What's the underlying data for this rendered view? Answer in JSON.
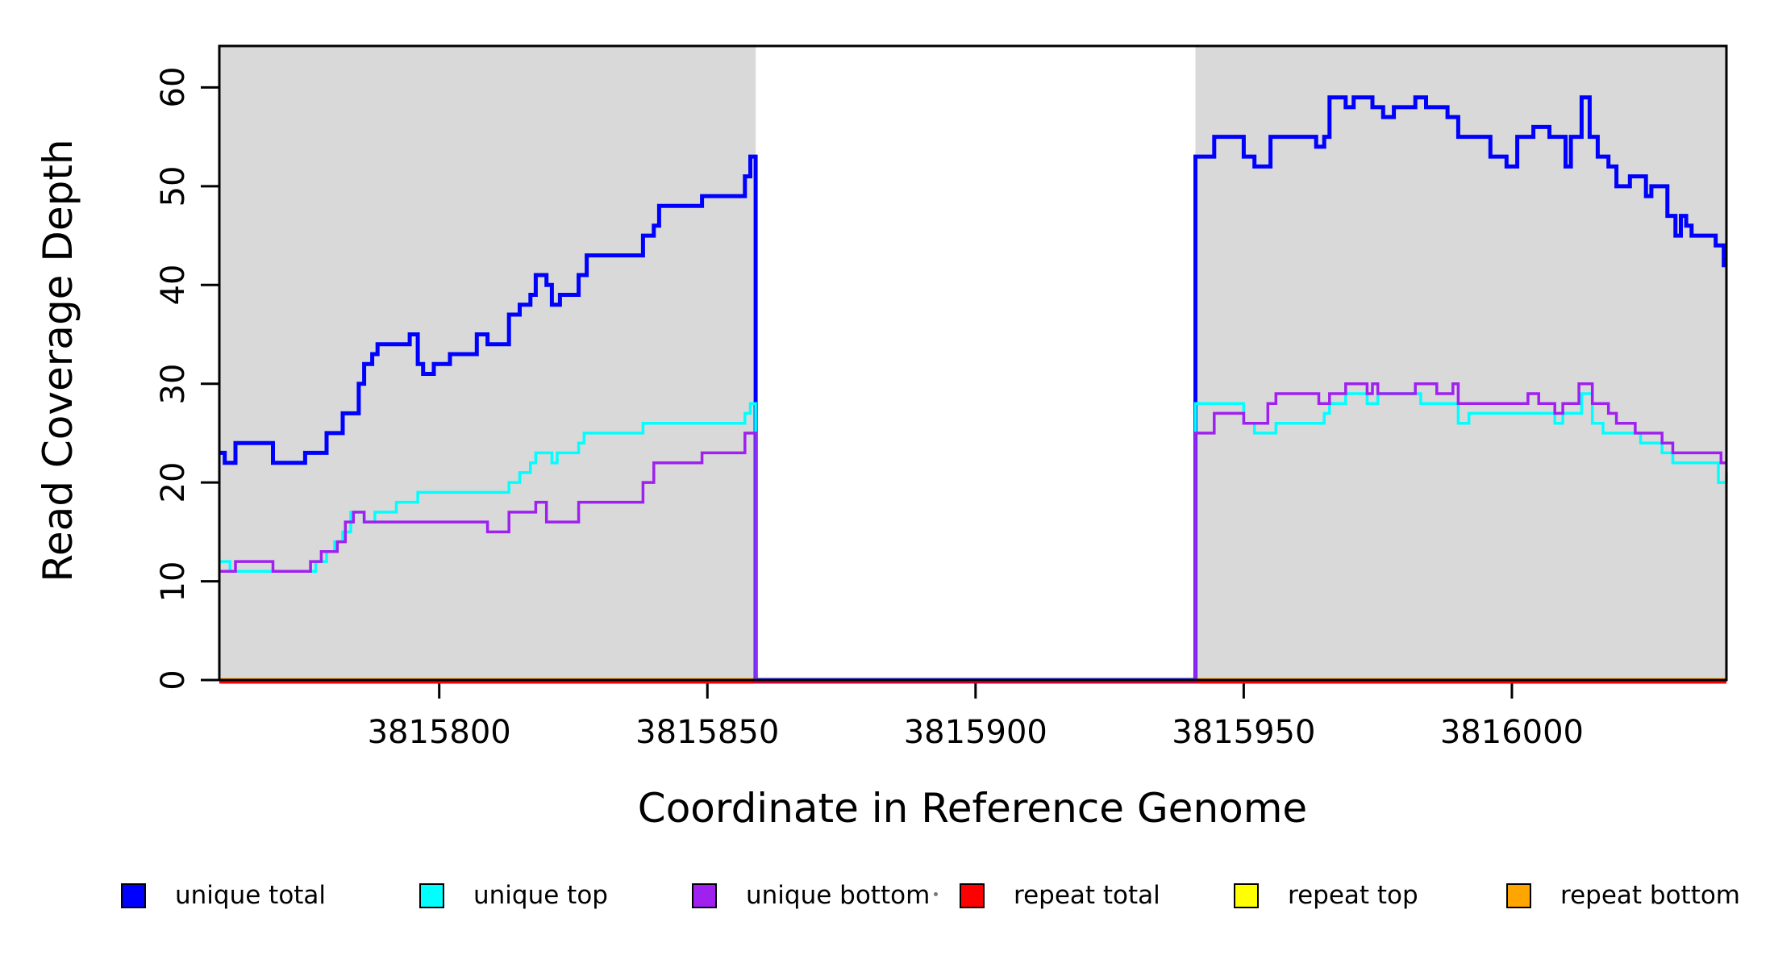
{
  "figure": {
    "xlabel": "Coordinate in Reference Genome",
    "ylabel": "Read Coverage Depth"
  },
  "legend": {
    "items": [
      {
        "label": "unique total",
        "color": "#0000FF"
      },
      {
        "label": "unique top",
        "color": "#00FFFF"
      },
      {
        "label": "unique bottom",
        "color": "#A020F0"
      },
      {
        "label": "repeat total",
        "color": "#FF0000"
      },
      {
        "label": "repeat top",
        "color": "#FFFF00"
      },
      {
        "label": "repeat bottom",
        "color": "#FFA500"
      }
    ]
  },
  "chart_data": {
    "type": "line",
    "step": true,
    "title": "",
    "xlabel": "Coordinate in Reference Genome",
    "ylabel": "Read Coverage Depth",
    "xlim": [
      3815759,
      3816040
    ],
    "ylim": [
      0,
      64.2
    ],
    "xticks": [
      3815800,
      3815850,
      3815900,
      3815950,
      3816000
    ],
    "yticks": [
      0,
      10,
      20,
      30,
      40,
      50,
      60
    ],
    "grid": false,
    "legend_position": "bottom-horizontal",
    "plot_background": "#FFFFFF",
    "shaded_region_color": "#D9D9D9",
    "shaded_regions": [
      {
        "x0": 3815759,
        "x1": 3815859
      },
      {
        "x0": 3815941,
        "x1": 3816040
      }
    ],
    "zero_coverage_gap": [
      3815859,
      3815941
    ],
    "series": [
      {
        "name": "unique total",
        "color": "#0000FF",
        "linewidth": 5,
        "points": [
          [
            3815759,
            23
          ],
          [
            3815760,
            22
          ],
          [
            3815762,
            24
          ],
          [
            3815769,
            22
          ],
          [
            3815775,
            23
          ],
          [
            3815779,
            25
          ],
          [
            3815782,
            27
          ],
          [
            3815785,
            30
          ],
          [
            3815786,
            32
          ],
          [
            3815787.5,
            33
          ],
          [
            3815788.5,
            34
          ],
          [
            3815794.5,
            35
          ],
          [
            3815796,
            32
          ],
          [
            3815797,
            31
          ],
          [
            3815799,
            32
          ],
          [
            3815802,
            33
          ],
          [
            3815807,
            35
          ],
          [
            3815809,
            34
          ],
          [
            3815813,
            37
          ],
          [
            3815815,
            38
          ],
          [
            3815817,
            39
          ],
          [
            3815818,
            41
          ],
          [
            3815820,
            40
          ],
          [
            3815821,
            38
          ],
          [
            3815822.5,
            39
          ],
          [
            3815826,
            41
          ],
          [
            3815827.5,
            43
          ],
          [
            3815838,
            45
          ],
          [
            3815840,
            46
          ],
          [
            3815841,
            48
          ],
          [
            3815849,
            49
          ],
          [
            3815857,
            51
          ],
          [
            3815858,
            53
          ],
          [
            3815859,
            0
          ],
          [
            3815941,
            53
          ],
          [
            3815944.5,
            55
          ],
          [
            3815950,
            53
          ],
          [
            3815952,
            52
          ],
          [
            3815955,
            55
          ],
          [
            3815963.5,
            54
          ],
          [
            3815965,
            55
          ],
          [
            3815966,
            59
          ],
          [
            3815969,
            58
          ],
          [
            3815970.5,
            59
          ],
          [
            3815974,
            58
          ],
          [
            3815976,
            57
          ],
          [
            3815978,
            58
          ],
          [
            3815982,
            59
          ],
          [
            3815984,
            58
          ],
          [
            3815988,
            57
          ],
          [
            3815990,
            55
          ],
          [
            3815996,
            53
          ],
          [
            3815999,
            52
          ],
          [
            3816001,
            55
          ],
          [
            3816004,
            56
          ],
          [
            3816007,
            55
          ],
          [
            3816010,
            52
          ],
          [
            3816011,
            55
          ],
          [
            3816013,
            59
          ],
          [
            3816014.5,
            55
          ],
          [
            3816016,
            53
          ],
          [
            3816018,
            52
          ],
          [
            3816019.5,
            50
          ],
          [
            3816022,
            51
          ],
          [
            3816025,
            49
          ],
          [
            3816026,
            50
          ],
          [
            3816029,
            47
          ],
          [
            3816030.5,
            45
          ],
          [
            3816031.5,
            47
          ],
          [
            3816032.5,
            46
          ],
          [
            3816033.5,
            45
          ],
          [
            3816038,
            44
          ],
          [
            3816039.5,
            42
          ]
        ]
      },
      {
        "name": "unique top",
        "color": "#00FFFF",
        "linewidth": 3.5,
        "points": [
          [
            3815759,
            12
          ],
          [
            3815761,
            11
          ],
          [
            3815777,
            12
          ],
          [
            3815779,
            13
          ],
          [
            3815780.5,
            14
          ],
          [
            3815782,
            15
          ],
          [
            3815783.5,
            17
          ],
          [
            3815786,
            16
          ],
          [
            3815788,
            17
          ],
          [
            3815792,
            18
          ],
          [
            3815796,
            19
          ],
          [
            3815813,
            20
          ],
          [
            3815815,
            21
          ],
          [
            3815817,
            22
          ],
          [
            3815818,
            23
          ],
          [
            3815821,
            22
          ],
          [
            3815822,
            23
          ],
          [
            3815826,
            24
          ],
          [
            3815827,
            25
          ],
          [
            3815838,
            26
          ],
          [
            3815857,
            27
          ],
          [
            3815858,
            28
          ],
          [
            3815859,
            0
          ],
          [
            3815941,
            28
          ],
          [
            3815950,
            26
          ],
          [
            3815952,
            25
          ],
          [
            3815956,
            26
          ],
          [
            3815965,
            27
          ],
          [
            3815966,
            28
          ],
          [
            3815969,
            29
          ],
          [
            3815973,
            28
          ],
          [
            3815975,
            29
          ],
          [
            3815983,
            28
          ],
          [
            3815990,
            26
          ],
          [
            3815992,
            27
          ],
          [
            3816008,
            26
          ],
          [
            3816009.5,
            27
          ],
          [
            3816013,
            29
          ],
          [
            3816015,
            26
          ],
          [
            3816017,
            25
          ],
          [
            3816024,
            24
          ],
          [
            3816028,
            23
          ],
          [
            3816030,
            22
          ],
          [
            3816038.5,
            20
          ],
          [
            3816040,
            21
          ]
        ]
      },
      {
        "name": "unique bottom",
        "color": "#A020F0",
        "linewidth": 3.5,
        "points": [
          [
            3815759,
            11
          ],
          [
            3815762,
            12
          ],
          [
            3815769,
            11
          ],
          [
            3815776,
            12
          ],
          [
            3815778,
            13
          ],
          [
            3815781,
            14
          ],
          [
            3815782.5,
            16
          ],
          [
            3815784,
            17
          ],
          [
            3815786,
            16
          ],
          [
            3815809,
            15
          ],
          [
            3815813,
            17
          ],
          [
            3815818,
            18
          ],
          [
            3815820,
            16
          ],
          [
            3815826,
            18
          ],
          [
            3815838,
            20
          ],
          [
            3815840,
            22
          ],
          [
            3815849,
            23
          ],
          [
            3815857,
            25
          ],
          [
            3815859,
            0
          ],
          [
            3815941,
            25
          ],
          [
            3815944.5,
            27
          ],
          [
            3815950,
            26
          ],
          [
            3815954.5,
            28
          ],
          [
            3815956,
            29
          ],
          [
            3815964,
            28
          ],
          [
            3815966,
            29
          ],
          [
            3815969,
            30
          ],
          [
            3815973,
            29
          ],
          [
            3815974,
            30
          ],
          [
            3815975,
            29
          ],
          [
            3815982,
            30
          ],
          [
            3815986,
            29
          ],
          [
            3815989,
            30
          ],
          [
            3815990,
            28
          ],
          [
            3816003,
            29
          ],
          [
            3816005,
            28
          ],
          [
            3816008,
            27
          ],
          [
            3816009.5,
            28
          ],
          [
            3816012.5,
            30
          ],
          [
            3816015,
            28
          ],
          [
            3816018,
            27
          ],
          [
            3816019.5,
            26
          ],
          [
            3816023,
            25
          ],
          [
            3816028,
            24
          ],
          [
            3816030,
            23
          ],
          [
            3816039,
            22
          ]
        ]
      },
      {
        "name": "repeat total",
        "color": "#FF0000",
        "linewidth": 4,
        "points": [
          [
            3815759,
            0
          ]
        ]
      },
      {
        "name": "repeat top",
        "color": "#FFFF00",
        "linewidth": 4,
        "points": [
          [
            3815759,
            0
          ]
        ]
      },
      {
        "name": "repeat bottom",
        "color": "#FFA500",
        "linewidth": 4,
        "points": [
          [
            3815759,
            0
          ]
        ]
      }
    ]
  }
}
